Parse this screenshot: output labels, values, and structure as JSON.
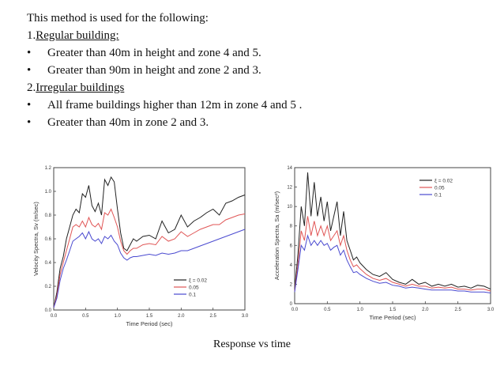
{
  "heading": "This method is used for the following:",
  "items": [
    {
      "type": "numbered",
      "num": "1. ",
      "label": "Regular building:"
    },
    {
      "type": "bullet",
      "text": "Greater than 40m in height and zone 4 and 5."
    },
    {
      "type": "bullet",
      "text": "Greater than 90m in height and zone 2 and 3."
    },
    {
      "type": "numbered",
      "num": "2.  ",
      "label": "Irregular buildings"
    },
    {
      "type": "bullet",
      "text": "All frame buildings higher than 12m in zone 4 and 5 ."
    },
    {
      "type": "bullet",
      "text": "Greater than 40m in zone 2 and 3."
    }
  ],
  "bullet_char": "•",
  "caption": "Response vs time",
  "colors": {
    "black": "#222222",
    "red": "#e05555",
    "blue": "#4a4ad0"
  },
  "chart_data": [
    {
      "type": "line",
      "xlabel": "Time Period (sec)",
      "ylabel": "Velocity Spectra, Sv (m/sec)",
      "xlim": [
        0,
        3.0
      ],
      "ylim": [
        0,
        1.2
      ],
      "xticks": [
        "0.0",
        "0.5",
        "1.0",
        "1.5",
        "2.0",
        "2.5",
        "3.0"
      ],
      "yticks": [
        "0.0",
        "0.2",
        "0.4",
        "0.6",
        "0.8",
        "1.0",
        "1.2"
      ],
      "legend_position": "bottom-right",
      "series": [
        {
          "name": "ξ = 0.02",
          "color": "black",
          "x": [
            0,
            0.05,
            0.1,
            0.15,
            0.2,
            0.25,
            0.3,
            0.35,
            0.4,
            0.45,
            0.5,
            0.55,
            0.6,
            0.65,
            0.7,
            0.75,
            0.8,
            0.85,
            0.9,
            0.95,
            1.0,
            1.05,
            1.1,
            1.15,
            1.2,
            1.25,
            1.3,
            1.4,
            1.5,
            1.6,
            1.7,
            1.8,
            1.9,
            2.0,
            2.1,
            2.2,
            2.3,
            2.4,
            2.5,
            2.6,
            2.7,
            2.8,
            2.9,
            3.0
          ],
          "y": [
            0.02,
            0.15,
            0.35,
            0.45,
            0.6,
            0.7,
            0.8,
            0.85,
            0.82,
            0.98,
            0.95,
            1.05,
            0.88,
            0.83,
            0.9,
            0.8,
            1.1,
            1.05,
            1.12,
            1.08,
            0.85,
            0.65,
            0.52,
            0.5,
            0.55,
            0.6,
            0.58,
            0.62,
            0.63,
            0.6,
            0.75,
            0.65,
            0.68,
            0.8,
            0.7,
            0.75,
            0.78,
            0.82,
            0.85,
            0.8,
            0.9,
            0.92,
            0.95,
            0.97
          ]
        },
        {
          "name": "0.05",
          "color": "red",
          "x": [
            0,
            0.05,
            0.1,
            0.15,
            0.2,
            0.25,
            0.3,
            0.35,
            0.4,
            0.45,
            0.5,
            0.55,
            0.6,
            0.65,
            0.7,
            0.75,
            0.8,
            0.85,
            0.9,
            0.95,
            1.0,
            1.05,
            1.1,
            1.15,
            1.2,
            1.25,
            1.3,
            1.4,
            1.5,
            1.6,
            1.7,
            1.8,
            1.9,
            2.0,
            2.1,
            2.2,
            2.3,
            2.4,
            2.5,
            2.6,
            2.7,
            2.8,
            2.9,
            3.0
          ],
          "y": [
            0.02,
            0.12,
            0.3,
            0.4,
            0.5,
            0.6,
            0.7,
            0.72,
            0.7,
            0.75,
            0.7,
            0.78,
            0.72,
            0.7,
            0.73,
            0.68,
            0.82,
            0.8,
            0.85,
            0.78,
            0.7,
            0.58,
            0.5,
            0.47,
            0.5,
            0.52,
            0.52,
            0.55,
            0.56,
            0.55,
            0.62,
            0.58,
            0.6,
            0.66,
            0.62,
            0.65,
            0.68,
            0.7,
            0.72,
            0.72,
            0.76,
            0.78,
            0.8,
            0.81
          ]
        },
        {
          "name": "0.1",
          "color": "blue",
          "x": [
            0,
            0.05,
            0.1,
            0.15,
            0.2,
            0.25,
            0.3,
            0.35,
            0.4,
            0.45,
            0.5,
            0.55,
            0.6,
            0.65,
            0.7,
            0.75,
            0.8,
            0.85,
            0.9,
            0.95,
            1.0,
            1.05,
            1.1,
            1.15,
            1.2,
            1.25,
            1.3,
            1.4,
            1.5,
            1.6,
            1.7,
            1.8,
            1.9,
            2.0,
            2.1,
            2.2,
            2.3,
            2.4,
            2.5,
            2.6,
            2.7,
            2.8,
            2.9,
            3.0
          ],
          "y": [
            0.02,
            0.1,
            0.25,
            0.35,
            0.42,
            0.5,
            0.58,
            0.6,
            0.62,
            0.65,
            0.6,
            0.66,
            0.6,
            0.58,
            0.6,
            0.56,
            0.62,
            0.6,
            0.63,
            0.58,
            0.55,
            0.48,
            0.44,
            0.42,
            0.44,
            0.45,
            0.45,
            0.46,
            0.47,
            0.46,
            0.48,
            0.47,
            0.48,
            0.5,
            0.5,
            0.52,
            0.54,
            0.56,
            0.58,
            0.6,
            0.62,
            0.64,
            0.66,
            0.68
          ]
        }
      ]
    },
    {
      "type": "line",
      "xlabel": "Time Period (sec)",
      "ylabel": "Acceleration Spectra, Sa (m/sec²)",
      "xlim": [
        0,
        3.0
      ],
      "ylim": [
        0,
        14
      ],
      "xticks": [
        "0.0",
        "0.5",
        "1.0",
        "1.5",
        "2.0",
        "2.5",
        "3.0"
      ],
      "yticks": [
        "0",
        "2",
        "4",
        "6",
        "8",
        "10",
        "12",
        "14"
      ],
      "legend_position": "top-right",
      "series": [
        {
          "name": "ξ = 0.02",
          "color": "black",
          "x": [
            0,
            0.05,
            0.1,
            0.15,
            0.2,
            0.25,
            0.3,
            0.35,
            0.4,
            0.45,
            0.5,
            0.55,
            0.6,
            0.65,
            0.7,
            0.75,
            0.8,
            0.85,
            0.9,
            0.95,
            1.0,
            1.1,
            1.2,
            1.3,
            1.4,
            1.5,
            1.6,
            1.7,
            1.8,
            1.9,
            2.0,
            2.1,
            2.2,
            2.3,
            2.4,
            2.5,
            2.6,
            2.7,
            2.8,
            2.9,
            3.0
          ],
          "y": [
            1.5,
            5,
            10,
            8,
            13.5,
            9,
            12.5,
            9,
            11,
            8.5,
            10.5,
            7.5,
            9,
            10.5,
            7,
            9.5,
            6.5,
            5.5,
            4.5,
            4.8,
            4.2,
            3.5,
            3,
            2.8,
            3.2,
            2.5,
            2.2,
            2.0,
            2.5,
            2.0,
            2.2,
            1.8,
            2.0,
            1.8,
            2.0,
            1.7,
            1.8,
            1.6,
            1.9,
            1.8,
            1.5
          ]
        },
        {
          "name": "0.05",
          "color": "red",
          "x": [
            0,
            0.05,
            0.1,
            0.15,
            0.2,
            0.25,
            0.3,
            0.35,
            0.4,
            0.45,
            0.5,
            0.55,
            0.6,
            0.65,
            0.7,
            0.75,
            0.8,
            0.85,
            0.9,
            0.95,
            1.0,
            1.1,
            1.2,
            1.3,
            1.4,
            1.5,
            1.6,
            1.7,
            1.8,
            1.9,
            2.0,
            2.1,
            2.2,
            2.3,
            2.4,
            2.5,
            2.6,
            2.7,
            2.8,
            2.9,
            3.0
          ],
          "y": [
            1.3,
            4,
            7.5,
            6.5,
            9,
            7,
            8.5,
            7,
            8,
            7,
            8,
            6.5,
            7,
            7.5,
            6,
            7,
            5.5,
            4.5,
            3.8,
            4.0,
            3.6,
            3.0,
            2.6,
            2.4,
            2.6,
            2.2,
            2.0,
            1.8,
            2.0,
            1.8,
            1.8,
            1.6,
            1.7,
            1.6,
            1.7,
            1.5,
            1.5,
            1.4,
            1.5,
            1.5,
            1.3
          ]
        },
        {
          "name": "0.1",
          "color": "blue",
          "x": [
            0,
            0.05,
            0.1,
            0.15,
            0.2,
            0.25,
            0.3,
            0.35,
            0.4,
            0.45,
            0.5,
            0.55,
            0.6,
            0.65,
            0.7,
            0.75,
            0.8,
            0.85,
            0.9,
            0.95,
            1.0,
            1.1,
            1.2,
            1.3,
            1.4,
            1.5,
            1.6,
            1.7,
            1.8,
            1.9,
            2.0,
            2.1,
            2.2,
            2.3,
            2.4,
            2.5,
            2.6,
            2.7,
            2.8,
            2.9,
            3.0
          ],
          "y": [
            1.2,
            3.5,
            6,
            5.5,
            7,
            6,
            6.5,
            6,
            6.5,
            6,
            6.2,
            5.5,
            5.8,
            6,
            5,
            5.5,
            4.5,
            3.8,
            3.2,
            3.3,
            3.0,
            2.6,
            2.3,
            2.1,
            2.2,
            1.9,
            1.8,
            1.6,
            1.7,
            1.6,
            1.5,
            1.4,
            1.4,
            1.4,
            1.4,
            1.3,
            1.3,
            1.2,
            1.2,
            1.2,
            1.1
          ]
        }
      ]
    }
  ]
}
